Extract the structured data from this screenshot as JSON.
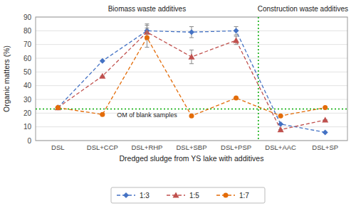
{
  "chart_data": {
    "type": "line",
    "categories": [
      "DSL",
      "DSL+CCP",
      "DSL+RHP",
      "DSL+SBP",
      "DSL+PSP",
      "DSL+AAC",
      "DSL+SP"
    ],
    "series": [
      {
        "name": "1:3",
        "color": "#4472C4",
        "marker": "diamond",
        "line_style": "dashed",
        "values": [
          24,
          58,
          80,
          79,
          80,
          12,
          6
        ],
        "errors": [
          0,
          0,
          5,
          4,
          3,
          0,
          0
        ]
      },
      {
        "name": "1:5",
        "color": "#C0504D",
        "marker": "triangle",
        "line_style": "dashed",
        "values": [
          24,
          47,
          79,
          61,
          73,
          8,
          15
        ],
        "errors": [
          0,
          0,
          5,
          5,
          3,
          0,
          0
        ]
      },
      {
        "name": "1:7",
        "color": "#E36C09",
        "marker": "circle",
        "line_style": "dashed",
        "values": [
          24,
          19,
          75,
          18,
          31,
          18,
          24
        ],
        "errors": [
          0,
          0,
          7,
          0,
          0,
          0,
          0
        ]
      }
    ],
    "hline": {
      "value": 23,
      "color": "#00AA00",
      "label": "OM of blank samples"
    },
    "vline": {
      "x": 4.5,
      "color": "#00AA00"
    },
    "annotations": [
      "Biomass waste additives",
      "Construction waste additives"
    ],
    "xlabel": "Dredged sludge from YS lake with additives",
    "ylabel": "Organic matters (%)",
    "ylim": [
      0,
      90
    ],
    "yticks": [
      0,
      10,
      20,
      30,
      40,
      50,
      60,
      70,
      80,
      90
    ],
    "grid": true,
    "legend": "bottom"
  }
}
